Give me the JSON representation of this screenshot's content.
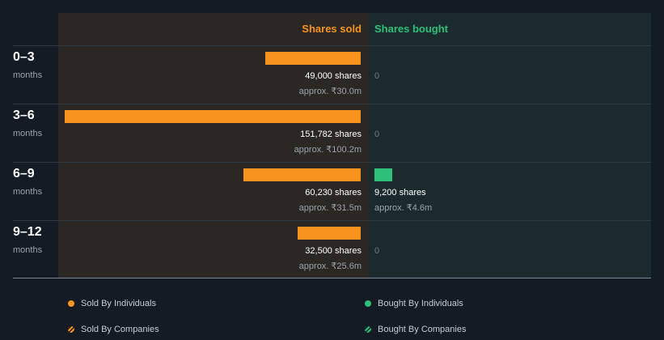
{
  "chart_data": {
    "type": "bar",
    "orientation": "horizontal",
    "title": "",
    "columns": {
      "sold": "Shares sold",
      "bought": "Shares bought"
    },
    "period_unit": "months",
    "categories": [
      "0–3",
      "3–6",
      "6–9",
      "9–12"
    ],
    "series": [
      {
        "name": "Shares sold",
        "values": [
          49000,
          151782,
          60230,
          32500
        ],
        "share_labels": [
          "49,000 shares",
          "151,782 shares",
          "60,230 shares",
          "32,500 shares"
        ],
        "value_labels": [
          "approx. ₹30.0m",
          "approx. ₹100.2m",
          "approx. ₹31.5m",
          "approx. ₹25.6m"
        ]
      },
      {
        "name": "Shares bought",
        "values": [
          0,
          0,
          9200,
          0
        ],
        "share_labels": [
          "0",
          "0",
          "9,200 shares",
          "0"
        ],
        "value_labels": [
          "",
          "",
          "approx. ₹4.6m",
          ""
        ]
      }
    ],
    "xlim": [
      0,
      151782
    ],
    "legend": [
      {
        "label": "Sold By Individuals",
        "color": "#f7931e",
        "style": "solid"
      },
      {
        "label": "Bought By Individuals",
        "color": "#2ebf7a",
        "style": "solid"
      },
      {
        "label": "Sold By Companies",
        "color": "#f7931e",
        "style": "hatched"
      },
      {
        "label": "Bought By Companies",
        "color": "#2ebf7a",
        "style": "hatched"
      }
    ],
    "colors": {
      "sold": "#f7931e",
      "bought": "#2ebf7a"
    }
  }
}
